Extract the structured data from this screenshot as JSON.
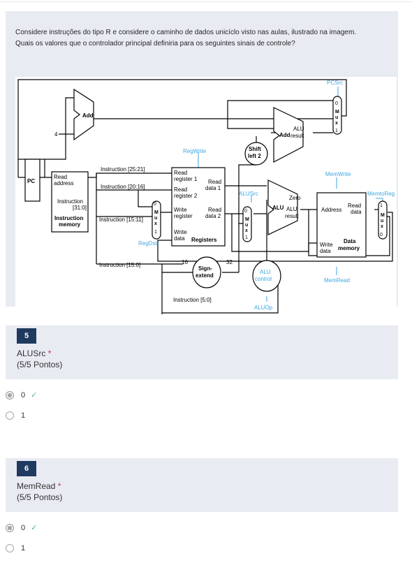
{
  "intro": {
    "line1": "Considere instruções do tipo R e considere o caminho de dados unicíclo visto nas aulas, ilustrado na imagem.",
    "line2": "Quais os valores que o controlador principal definiria para os seguintes sinais de controle?"
  },
  "diagram_labels": {
    "pcsrc": "PCSrc",
    "add": "Add",
    "four": "4",
    "mux": [
      "M",
      "u",
      "x"
    ],
    "zero": "0",
    "one": "1",
    "add_alu": "Add",
    "alu_result_1": "ALU",
    "alu_result_2": "result",
    "shift_1": "Shift",
    "shift_2": "left 2",
    "regwrite": "RegWrite",
    "pc": "PC",
    "read_address_1": "Read",
    "read_address_2": "address",
    "instruction_1": "Instruction",
    "instruction_2": "[31:0]",
    "instruction_memory_1": "Instruction",
    "instruction_memory_2": "memory",
    "instr_25_21": "Instruction [25:21]",
    "instr_20_16": "Instruction [20:16]",
    "instr_15_11": "Instruction [15:11]",
    "instr_15_0": "Instruction [15:0]",
    "instr_5_0": "Instruction [5:0]",
    "read_register_1a": "Read",
    "read_register_1b": "register 1",
    "read_register_2a": "Read",
    "read_register_2b": "register 2",
    "write_register_a": "Write",
    "write_register_b": "register",
    "write_data_a": "Write",
    "write_data_b": "data",
    "registers": "Registers",
    "read_data1_a": "Read",
    "read_data1_b": "data 1",
    "read_data2_a": "Read",
    "read_data2_b": "data 2",
    "regdst": "RegDst",
    "alusrc": "ALUSrc",
    "alu": "ALU",
    "zero_label": "Zero",
    "alu_label": "ALU",
    "result_label": "result",
    "memwrite": "MemWrite",
    "memtoreg": "MemtoReg",
    "address": "Address",
    "read_data_a": "Read",
    "read_data_b": "data",
    "write_data_mem_a": "Write",
    "write_data_mem_b": "data",
    "data_memory_a": "Data",
    "data_memory_b": "memory",
    "memread": "MemRead",
    "sixteen": "16",
    "thirtytwo": "32",
    "sign_a": "Sign-",
    "sign_b": "extend",
    "alu_control_a": "ALU",
    "alu_control_b": "control",
    "aluop": "ALUOp"
  },
  "questions": [
    {
      "number": "5",
      "title": "ALUSrc",
      "required_mark": "*",
      "points": "(5/5 Pontos)",
      "options": [
        {
          "label": "0",
          "selected": true,
          "correct_mark": "✓"
        },
        {
          "label": "1",
          "selected": false
        }
      ]
    },
    {
      "number": "6",
      "title": "MemRead",
      "required_mark": "*",
      "points": "(5/5 Pontos)",
      "options": [
        {
          "label": "0",
          "selected": true,
          "correct_mark": "✓"
        },
        {
          "label": "1",
          "selected": false
        }
      ]
    }
  ],
  "colors": {
    "card_bg": "#e8ebf2",
    "number_badge": "#1f3a5f",
    "accent_blue": "#3ea6e0",
    "required": "#c4314b",
    "check": "#5fb37c"
  }
}
